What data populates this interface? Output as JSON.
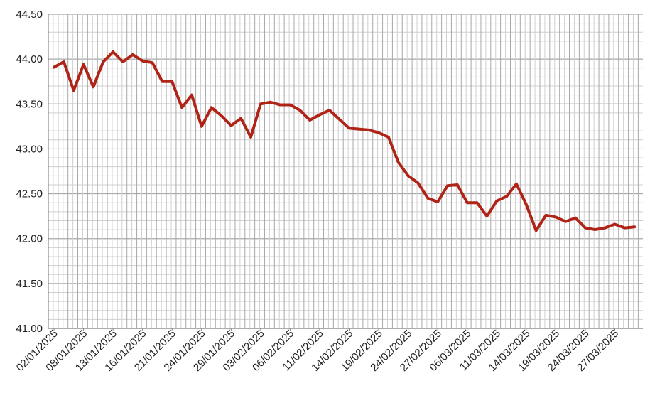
{
  "chart_data": {
    "type": "line",
    "title": "",
    "xlabel": "",
    "ylabel": "",
    "ylim": [
      41.0,
      44.5
    ],
    "y_ticks": [
      "41.00",
      "41.50",
      "42.00",
      "42.50",
      "43.00",
      "43.50",
      "44.00",
      "44.50"
    ],
    "x_tick_labels": [
      "02/01/2025",
      "08/01/2025",
      "13/01/2025",
      "16/01/2025",
      "21/01/2025",
      "24/01/2025",
      "29/01/2025",
      "03/02/2025",
      "06/02/2025",
      "11/02/2025",
      "14/02/2025",
      "19/02/2025",
      "24/02/2025",
      "27/02/2025",
      "06/03/2025",
      "11/03/2025",
      "14/03/2025",
      "19/03/2025",
      "24/03/2025",
      "27/03/2025"
    ],
    "grid": true,
    "legend": "none",
    "colors": {
      "line": "#b02418",
      "grid_major": "#a8a8a8",
      "grid_minor": "#d0d0d0",
      "axis": "#888888"
    },
    "series": [
      {
        "values": [
          43.91,
          43.97,
          43.65,
          43.94,
          43.69,
          43.97,
          44.08,
          43.97,
          44.05,
          43.98,
          43.96,
          43.75,
          43.75,
          43.46,
          43.6,
          43.25,
          43.46,
          43.37,
          43.26,
          43.34,
          43.13,
          43.5,
          43.52,
          43.49,
          43.49,
          43.43,
          43.32,
          43.38,
          43.43,
          43.33,
          43.23,
          43.22,
          43.21,
          43.18,
          43.13,
          42.85,
          42.7,
          42.62,
          42.45,
          42.41,
          42.59,
          42.6,
          42.4,
          42.4,
          42.25,
          42.42,
          42.47,
          42.61,
          42.38,
          42.09,
          42.26,
          42.24,
          42.19,
          42.23,
          42.12,
          42.1,
          42.12,
          42.16,
          42.12,
          42.13
        ]
      }
    ]
  }
}
